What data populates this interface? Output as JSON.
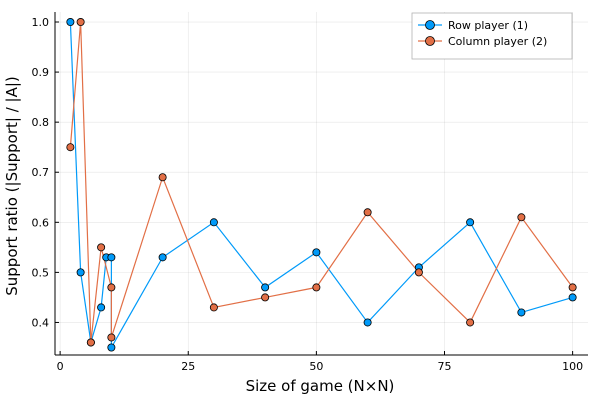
{
  "chart_data": {
    "type": "line",
    "title": "",
    "xlabel": "Size of game (N×N)",
    "ylabel": "Support ratio (|Support| / |A|)",
    "xlim": [
      -1,
      103
    ],
    "ylim": [
      0.335,
      1.02
    ],
    "xticks": [
      0,
      25,
      50,
      75,
      100
    ],
    "yticks": [
      0.4,
      0.5,
      0.6,
      0.7,
      0.8,
      0.9,
      1.0
    ],
    "xtick_labels": [
      "0",
      "25",
      "50",
      "75",
      "100"
    ],
    "ytick_labels": [
      "0.4",
      "0.5",
      "0.6",
      "0.7",
      "0.8",
      "0.9",
      "1.0"
    ],
    "grid": true,
    "legend_position": "top-right",
    "series": [
      {
        "name": "Row player (1)",
        "color": "#009AF9",
        "x": [
          2,
          4,
          6,
          8,
          9,
          10,
          10,
          20,
          30,
          40,
          50,
          60,
          70,
          80,
          90,
          100
        ],
        "y": [
          1.0,
          0.5,
          0.36,
          0.43,
          0.53,
          0.53,
          0.35,
          0.53,
          0.6,
          0.47,
          0.54,
          0.4,
          0.51,
          0.6,
          0.42,
          0.45
        ]
      },
      {
        "name": "Column player (2)",
        "color": "#E26F46",
        "x": [
          2,
          4,
          6,
          8,
          10,
          10,
          20,
          30,
          40,
          50,
          60,
          70,
          80,
          90,
          100
        ],
        "y": [
          0.75,
          1.0,
          0.36,
          0.55,
          0.47,
          0.37,
          0.69,
          0.43,
          0.45,
          0.47,
          0.62,
          0.5,
          0.4,
          0.61,
          0.47
        ]
      }
    ]
  }
}
